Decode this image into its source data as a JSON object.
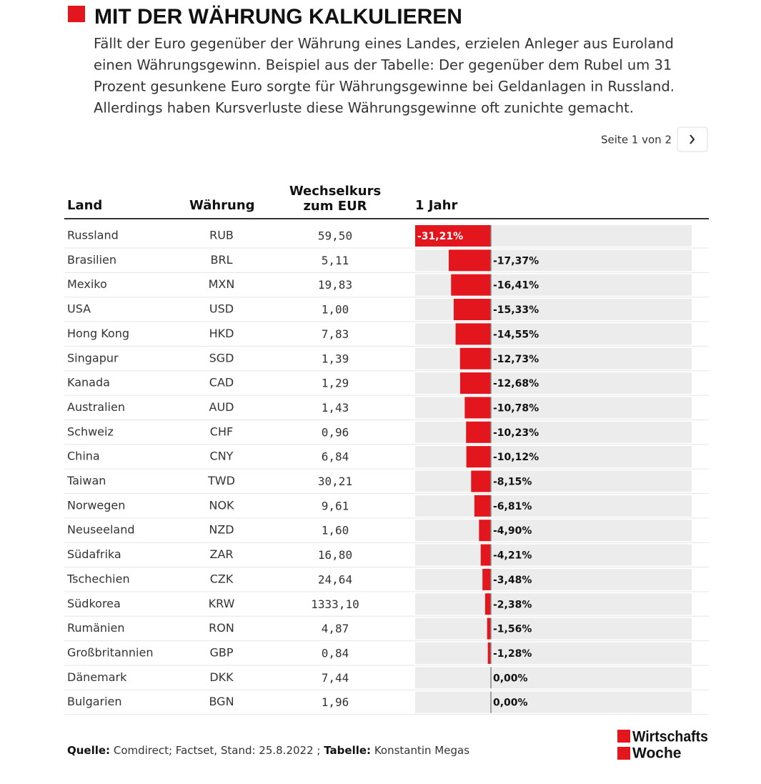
{
  "header": {
    "title": "MIT DER WÄHRUNG KALKULIEREN",
    "intro": [
      "Fällt der Euro gegenüber der Währung eines Landes, erzielen Anleger aus Euroland",
      "einen Währungsgewinn. Beispiel aus der Tabelle: Der gegenüber dem Rubel um 31",
      "Prozent gesunkene Euro sorgte für Währungsgewinne bei Geldanlagen in Russland.",
      "Allerdings haben Kursverluste diese Währungsgewinne oft zunichte gemacht."
    ],
    "pager": "Seite 1 von 2"
  },
  "table": {
    "columns": [
      "Land",
      "Währung",
      [
        "Wechselkurs",
        "zum EUR"
      ],
      "1 Jahr"
    ],
    "rows": [
      {
        "land": "Russland",
        "currency": "RUB",
        "rate": "59,50",
        "change": {
          "value": -31.21,
          "label": "-31,21%"
        }
      },
      {
        "land": "Brasilien",
        "currency": "BRL",
        "rate": "5,11",
        "change": {
          "value": -17.37,
          "label": "-17,37%"
        }
      },
      {
        "land": "Mexiko",
        "currency": "MXN",
        "rate": "19,83",
        "change": {
          "value": -16.41,
          "label": "-16,41%"
        }
      },
      {
        "land": "USA",
        "currency": "USD",
        "rate": "1,00",
        "change": {
          "value": -15.33,
          "label": "-15,33%"
        }
      },
      {
        "land": "Hong Kong",
        "currency": "HKD",
        "rate": "7,83",
        "change": {
          "value": -14.55,
          "label": "-14,55%"
        }
      },
      {
        "land": "Singapur",
        "currency": "SGD",
        "rate": "1,39",
        "change": {
          "value": -12.73,
          "label": "-12,73%"
        }
      },
      {
        "land": "Kanada",
        "currency": "CAD",
        "rate": "1,29",
        "change": {
          "value": -12.68,
          "label": "-12,68%"
        }
      },
      {
        "land": "Australien",
        "currency": "AUD",
        "rate": "1,43",
        "change": {
          "value": -10.78,
          "label": "-10,78%"
        }
      },
      {
        "land": "Schweiz",
        "currency": "CHF",
        "rate": "0,96",
        "change": {
          "value": -10.23,
          "label": "-10,23%"
        }
      },
      {
        "land": "China",
        "currency": "CNY",
        "rate": "6,84",
        "change": {
          "value": -10.12,
          "label": "-10,12%"
        }
      },
      {
        "land": "Taiwan",
        "currency": "TWD",
        "rate": "30,21",
        "change": {
          "value": -8.15,
          "label": "-8,15%"
        }
      },
      {
        "land": "Norwegen",
        "currency": "NOK",
        "rate": "9,61",
        "change": {
          "value": -6.81,
          "label": "-6,81%"
        }
      },
      {
        "land": "Neuseeland",
        "currency": "NZD",
        "rate": "1,60",
        "change": {
          "value": -4.9,
          "label": "-4,90%"
        }
      },
      {
        "land": "Südafrika",
        "currency": "ZAR",
        "rate": "16,80",
        "change": {
          "value": -4.21,
          "label": "-4,21%"
        }
      },
      {
        "land": "Tschechien",
        "currency": "CZK",
        "rate": "24,64",
        "change": {
          "value": -3.48,
          "label": "-3,48%"
        }
      },
      {
        "land": "Südkorea",
        "currency": "KRW",
        "rate": "1333,10",
        "change": {
          "value": -2.38,
          "label": "-2,38%"
        }
      },
      {
        "land": "Rumänien",
        "currency": "RON",
        "rate": "4,87",
        "change": {
          "value": -1.56,
          "label": "-1,56%"
        }
      },
      {
        "land": "Großbritannien",
        "currency": "GBP",
        "rate": "0,84",
        "change": {
          "value": -1.28,
          "label": "-1,28%"
        }
      },
      {
        "land": "Dänemark",
        "currency": "DKK",
        "rate": "7,44",
        "change": {
          "value": 0,
          "label": "0,00%"
        }
      },
      {
        "land": "Bulgarien",
        "currency": "BGN",
        "rate": "1,96",
        "change": {
          "value": 0,
          "label": "0,00%"
        }
      }
    ],
    "bar_color": "#e3161d"
  },
  "footer": {
    "source_label": "Quelle:",
    "source": "Comdirect; Factset, Stand: 25.8.2022 ;",
    "table_label": "Tabelle:",
    "author": "Konstantin Megas",
    "logo": [
      "Wirtschafts",
      "Woche"
    ]
  }
}
